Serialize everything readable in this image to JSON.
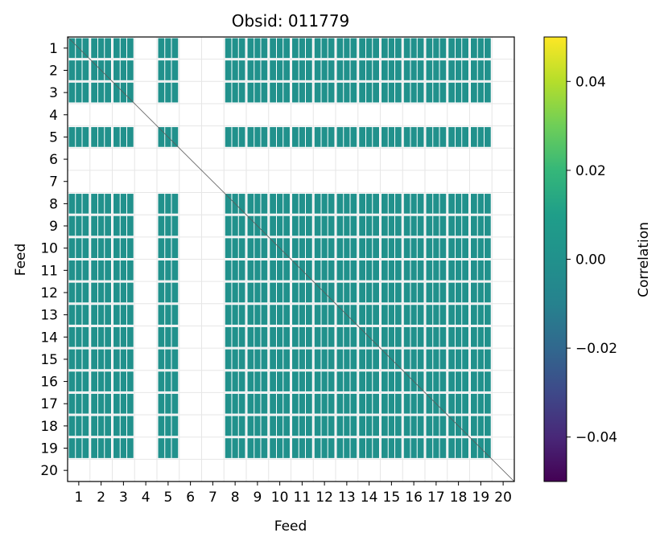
{
  "chart_data": {
    "type": "heatmap",
    "title": "Obsid: 011779",
    "xlabel": "Feed",
    "ylabel": "Feed",
    "feeds": [
      1,
      2,
      3,
      4,
      5,
      6,
      7,
      8,
      9,
      10,
      11,
      12,
      13,
      14,
      15,
      16,
      17,
      18,
      19,
      20
    ],
    "active_feeds": [
      1,
      2,
      3,
      5,
      8,
      9,
      10,
      11,
      12,
      13,
      14,
      15,
      16,
      17,
      18,
      19
    ],
    "missing_feeds": [
      4,
      6,
      7,
      20
    ],
    "uniform_value": 0.0,
    "colorbar": {
      "label": "Correlation",
      "vmin": -0.05,
      "vmax": 0.05,
      "ticks": [
        -0.04,
        -0.02,
        0.0,
        0.02,
        0.04
      ],
      "tick_labels": [
        "−0.04",
        "−0.02",
        "0.00",
        "0.02",
        "0.04"
      ],
      "colormap": "viridis"
    },
    "cell_color": "#21918c",
    "grid": true
  }
}
